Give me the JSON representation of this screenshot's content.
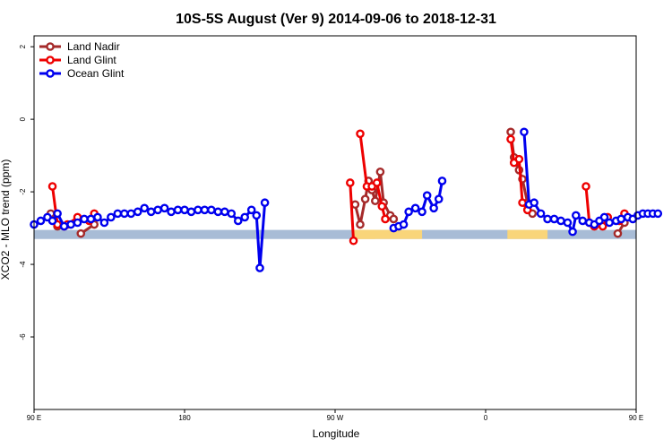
{
  "chart_data": {
    "type": "line",
    "title": "10S-5S August (Ver 9)   2014-09-06 to 2018-12-31",
    "xlabel": "Longitude",
    "ylabel": "XCO2 - MLO trend (ppm)",
    "xlim": [
      90,
      450
    ],
    "ylim": [
      -8,
      2.3
    ],
    "x_ticks": [
      {
        "value": 90,
        "label": "90 E"
      },
      {
        "value": 180,
        "label": "180"
      },
      {
        "value": 270,
        "label": "90 W"
      },
      {
        "value": 360,
        "label": "0"
      },
      {
        "value": 450,
        "label": "90 E"
      }
    ],
    "y_ticks": [
      {
        "value": 2,
        "label": "2"
      },
      {
        "value": 0,
        "label": "0"
      },
      {
        "value": -2,
        "label": "-2"
      },
      {
        "value": -4,
        "label": "-4"
      },
      {
        "value": -6,
        "label": "-6"
      }
    ],
    "legend_position": "top-left",
    "land_bar": {
      "y_range": [
        -3.3,
        -3.05
      ],
      "ocean_color": "#a8bcd6",
      "land_color": "#f9d57a",
      "land_segments": [
        [
          281,
          294
        ],
        [
          283,
          322
        ],
        [
          373,
          397
        ]
      ]
    },
    "series": [
      {
        "name": "Land Nadir",
        "color": "#a52a2a",
        "segments": [
          [
            [
              100,
              -2.6
            ],
            [
              104,
              -2.95
            ]
          ],
          [
            [
              126,
              -2.9
            ],
            [
              118,
              -3.15
            ]
          ],
          [
            [
              282,
              -2.35
            ],
            [
              285,
              -2.9
            ],
            [
              288,
              -2.2
            ],
            [
              290,
              -1.7
            ],
            [
              292,
              -1.95
            ],
            [
              294,
              -2.25
            ],
            [
              297,
              -1.45
            ],
            [
              299,
              -2.3
            ],
            [
              303,
              -2.65
            ],
            [
              305,
              -2.75
            ]
          ],
          [
            [
              375,
              -0.35
            ],
            [
              377,
              -1.05
            ],
            [
              380,
              -1.4
            ],
            [
              382,
              -1.65
            ],
            [
              385,
              -2.3
            ],
            [
              388,
              -2.6
            ]
          ],
          [
            [
              439,
              -3.15
            ],
            [
              443,
              -2.85
            ]
          ]
        ]
      },
      {
        "name": "Land Glint",
        "color": "#ee0000",
        "segments": [
          [
            [
              101,
              -1.85
            ],
            [
              104,
              -2.9
            ],
            [
              108,
              -2.95
            ]
          ],
          [
            [
              116,
              -2.7
            ],
            [
              110,
              -2.9
            ]
          ],
          [
            [
              126,
              -2.6
            ],
            [
              123,
              -2.8
            ]
          ],
          [
            [
              279,
              -1.75
            ],
            [
              281,
              -3.35
            ]
          ],
          [
            [
              285,
              -0.4
            ],
            [
              289,
              -1.85
            ],
            [
              292,
              -1.85
            ],
            [
              295,
              -1.75
            ],
            [
              298,
              -2.4
            ],
            [
              300,
              -2.75
            ]
          ],
          [
            [
              375,
              -0.55
            ],
            [
              377,
              -1.2
            ],
            [
              380,
              -1.1
            ],
            [
              382,
              -2.3
            ],
            [
              385,
              -2.5
            ]
          ],
          [
            [
              420,
              -1.85
            ],
            [
              422,
              -2.85
            ],
            [
              425,
              -2.95
            ]
          ],
          [
            [
              433,
              -2.7
            ],
            [
              430,
              -2.95
            ]
          ],
          [
            [
              443,
              -2.6
            ],
            [
              440,
              -2.8
            ]
          ]
        ]
      },
      {
        "name": "Ocean Glint",
        "color": "#0000ee",
        "segments": [
          [
            [
              90,
              -2.9
            ],
            [
              94,
              -2.8
            ],
            [
              98,
              -2.7
            ],
            [
              101,
              -2.8
            ],
            [
              104,
              -2.6
            ],
            [
              108,
              -2.95
            ],
            [
              112,
              -2.9
            ],
            [
              116,
              -2.85
            ],
            [
              120,
              -2.75
            ],
            [
              124,
              -2.75
            ],
            [
              128,
              -2.7
            ],
            [
              132,
              -2.85
            ],
            [
              136,
              -2.7
            ],
            [
              140,
              -2.6
            ],
            [
              144,
              -2.6
            ],
            [
              148,
              -2.6
            ],
            [
              152,
              -2.55
            ],
            [
              156,
              -2.45
            ],
            [
              160,
              -2.55
            ],
            [
              164,
              -2.5
            ],
            [
              168,
              -2.45
            ],
            [
              172,
              -2.55
            ],
            [
              176,
              -2.5
            ],
            [
              180,
              -2.5
            ],
            [
              184,
              -2.55
            ],
            [
              188,
              -2.5
            ],
            [
              192,
              -2.5
            ],
            [
              196,
              -2.5
            ],
            [
              200,
              -2.55
            ],
            [
              204,
              -2.55
            ],
            [
              208,
              -2.6
            ],
            [
              212,
              -2.8
            ],
            [
              216,
              -2.7
            ],
            [
              220,
              -2.5
            ],
            [
              223,
              -2.65
            ],
            [
              225,
              -4.1
            ],
            [
              228,
              -2.3
            ]
          ],
          [
            [
              305,
              -3.0
            ],
            [
              308,
              -2.95
            ],
            [
              311,
              -2.9
            ],
            [
              314,
              -2.55
            ],
            [
              318,
              -2.45
            ],
            [
              322,
              -2.55
            ],
            [
              325,
              -2.1
            ],
            [
              329,
              -2.45
            ],
            [
              332,
              -2.2
            ],
            [
              334,
              -1.7
            ]
          ],
          [
            [
              383,
              -0.35
            ],
            [
              386,
              -2.35
            ],
            [
              389,
              -2.3
            ],
            [
              393,
              -2.6
            ],
            [
              397,
              -2.75
            ],
            [
              401,
              -2.75
            ],
            [
              405,
              -2.8
            ],
            [
              409,
              -2.85
            ],
            [
              412,
              -3.1
            ],
            [
              414,
              -2.65
            ],
            [
              418,
              -2.8
            ],
            [
              422,
              -2.85
            ],
            [
              425,
              -2.9
            ],
            [
              428,
              -2.8
            ],
            [
              431,
              -2.7
            ],
            [
              434,
              -2.85
            ],
            [
              438,
              -2.8
            ],
            [
              441,
              -2.75
            ],
            [
              445,
              -2.7
            ],
            [
              448,
              -2.75
            ],
            [
              451,
              -2.65
            ],
            [
              454,
              -2.6
            ],
            [
              457,
              -2.6
            ],
            [
              460,
              -2.6
            ],
            [
              463,
              -2.6
            ]
          ]
        ]
      }
    ]
  }
}
